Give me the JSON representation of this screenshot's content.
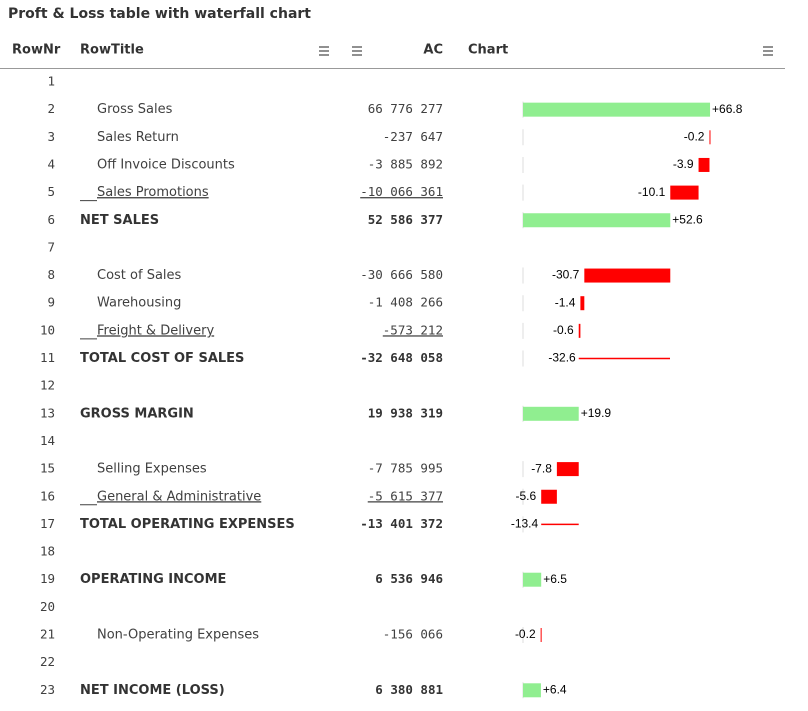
{
  "title": "Proft & Loss table with waterfall chart",
  "table": {
    "columns": [
      "RowNr",
      "RowTitle",
      "AC",
      "Chart"
    ],
    "positive_color": "#90ee90",
    "negative_color": "#ff0000",
    "rows": [
      {
        "nr": 1
      },
      {
        "nr": 2,
        "title": "Gross Sales",
        "ac": "66 776 277",
        "bar": {
          "value": 66.8,
          "label": "+66.8"
        }
      },
      {
        "nr": 3,
        "title": "Sales Return",
        "ac": "-237 647",
        "bar": {
          "value": -0.2
        }
      },
      {
        "nr": 4,
        "title": "Off Invoice Discounts",
        "ac": "-3 885 892",
        "bar": {
          "value": -3.9
        }
      },
      {
        "nr": 5,
        "title": "Sales Promotions",
        "ac": "-10 066 361",
        "bar": {
          "value": -10.1
        },
        "underline": true
      },
      {
        "nr": 6,
        "title": "NET SALES",
        "ac": "52 586 377",
        "bar": {
          "value": 52.6,
          "label": "+52.6"
        },
        "bold": true
      },
      {
        "nr": 7
      },
      {
        "nr": 8,
        "title": "Cost of Sales",
        "ac": "-30 666 580",
        "bar": {
          "value": -30.7
        }
      },
      {
        "nr": 9,
        "title": "Warehousing",
        "ac": "-1 408 266",
        "bar": {
          "value": -1.4
        }
      },
      {
        "nr": 10,
        "title": "Freight & Delivery",
        "ac": "-573 212",
        "bar": {
          "value": -0.6
        },
        "underline": true
      },
      {
        "nr": 11,
        "title": "TOTAL COST OF SALES",
        "ac": "-32 648 058",
        "bar": {
          "value": -32.6
        },
        "bold": true
      },
      {
        "nr": 12
      },
      {
        "nr": 13,
        "title": "GROSS MARGIN",
        "ac": "19 938 319",
        "bar": {
          "value": 19.9,
          "label": "+19.9"
        },
        "bold": true
      },
      {
        "nr": 14
      },
      {
        "nr": 15,
        "title": "Selling Expenses",
        "ac": "-7 785 995",
        "bar": {
          "value": -7.8
        }
      },
      {
        "nr": 16,
        "title": "General & Administrative",
        "ac": "-5 615 377",
        "bar": {
          "value": -5.6
        },
        "underline": true
      },
      {
        "nr": 17,
        "title": "TOTAL OPERATING EXPENSES",
        "ac": "-13 401 372",
        "bar": {
          "value": -13.4
        },
        "bold": true
      },
      {
        "nr": 18
      },
      {
        "nr": 19,
        "title": "OPERATING INCOME",
        "ac": "6 536 946",
        "bar": {
          "value": 6.5,
          "label": "+6.5"
        },
        "bold": true
      },
      {
        "nr": 20
      },
      {
        "nr": 21,
        "title": "Non-Operating Expenses",
        "ac": "-156 066",
        "bar": {
          "value": -0.2
        }
      },
      {
        "nr": 22
      },
      {
        "nr": 23,
        "title": "NET INCOME (LOSS)",
        "ac": "6 380 881",
        "bar": {
          "value": 6.4,
          "label": "+6.4"
        },
        "bold": true
      }
    ]
  }
}
